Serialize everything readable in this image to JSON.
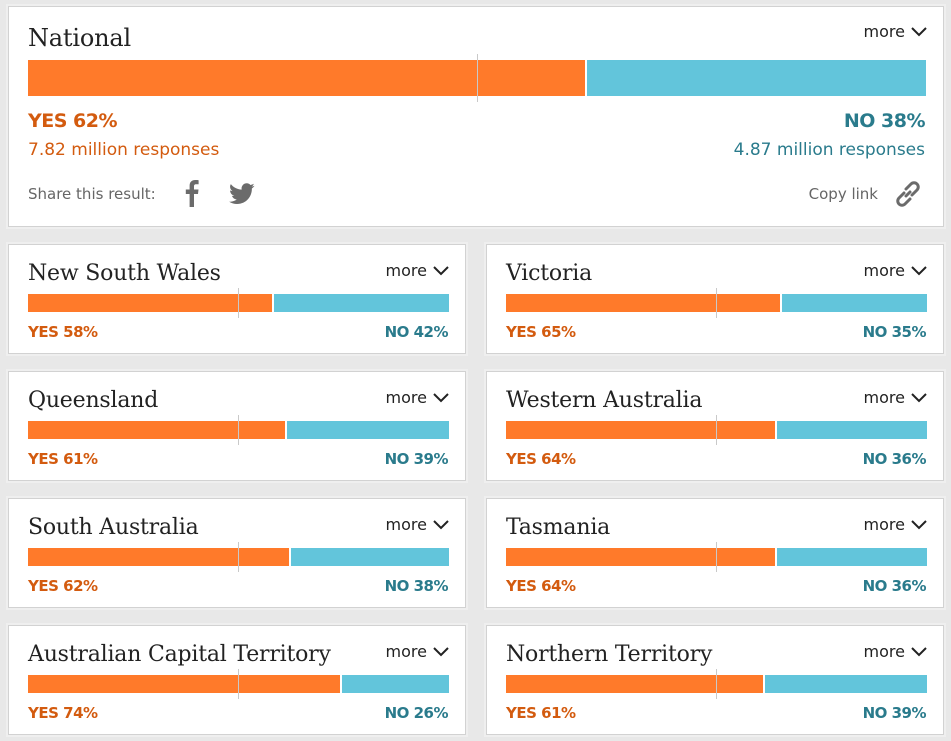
{
  "more_label": "more",
  "colors": {
    "yes": "#ff7a2a",
    "no": "#62c5db",
    "yes_text": "#d35b0f",
    "no_text": "#2a7b8c"
  },
  "national": {
    "title": "National",
    "yes_pct": 62,
    "yes_label": "YES 62%",
    "no_label": "NO 38%",
    "yes_responses": "7.82 million responses",
    "no_responses": "4.87 million responses",
    "share_label": "Share this result:",
    "copy_link_label": "Copy link",
    "icons": [
      "facebook-icon",
      "twitter-icon",
      "link-icon"
    ]
  },
  "states": [
    {
      "name": "New South Wales",
      "yes_pct": 58,
      "yes_label": "YES 58%",
      "no_label": "NO 42%"
    },
    {
      "name": "Victoria",
      "yes_pct": 65,
      "yes_label": "YES 65%",
      "no_label": "NO 35%"
    },
    {
      "name": "Queensland",
      "yes_pct": 61,
      "yes_label": "YES 61%",
      "no_label": "NO 39%"
    },
    {
      "name": "Western Australia",
      "yes_pct": 64,
      "yes_label": "YES 64%",
      "no_label": "NO 36%"
    },
    {
      "name": "South Australia",
      "yes_pct": 62,
      "yes_label": "YES 62%",
      "no_label": "NO 38%"
    },
    {
      "name": "Tasmania",
      "yes_pct": 64,
      "yes_label": "YES 64%",
      "no_label": "NO 36%"
    },
    {
      "name": "Australian Capital Territory",
      "yes_pct": 74,
      "yes_label": "YES 74%",
      "no_label": "NO 26%"
    },
    {
      "name": "Northern Territory",
      "yes_pct": 61,
      "yes_label": "YES 61%",
      "no_label": "NO 39%"
    }
  ]
}
